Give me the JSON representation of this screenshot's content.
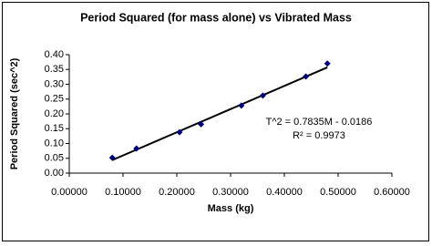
{
  "chart_data": {
    "type": "scatter",
    "title": "Period Squared (for mass alone) vs Vibrated Mass",
    "x_label": "Mass (kg)",
    "y_label": "Period Squared (sec^2)",
    "series": [
      {
        "name": "Period squared",
        "color": "#000080",
        "x": [
          0.08,
          0.125,
          0.205,
          0.245,
          0.32,
          0.36,
          0.44,
          0.48
        ],
        "values": [
          0.052,
          0.083,
          0.138,
          0.165,
          0.228,
          0.262,
          0.326,
          0.37
        ]
      }
    ],
    "trendline": {
      "color": "#000000",
      "x": [
        0.08,
        0.48
      ],
      "values": [
        0.044,
        0.357
      ]
    },
    "annotations": [
      "T^2 = 0.7835M - 0.0186",
      "R² = 0.9973"
    ],
    "xlim": [
      0,
      0.6
    ],
    "ylim": [
      0,
      0.4
    ],
    "xticks": [
      {
        "value": 0,
        "label": "0.00000"
      },
      {
        "value": 0.1,
        "label": "0.10000"
      },
      {
        "value": 0.2,
        "label": "0.20000"
      },
      {
        "value": 0.3,
        "label": "0.30000"
      },
      {
        "value": 0.4,
        "label": "0.40000"
      },
      {
        "value": 0.5,
        "label": "0.50000"
      },
      {
        "value": 0.6,
        "label": "0.60000"
      }
    ],
    "yticks": [
      {
        "value": 0,
        "label": "0.00"
      },
      {
        "value": 0.05,
        "label": "0.05"
      },
      {
        "value": 0.1,
        "label": "0.10"
      },
      {
        "value": 0.15,
        "label": "0.15"
      },
      {
        "value": 0.2,
        "label": "0.20"
      },
      {
        "value": 0.25,
        "label": "0.25"
      },
      {
        "value": 0.3,
        "label": "0.30"
      },
      {
        "value": 0.35,
        "label": "0.35"
      },
      {
        "value": 0.4,
        "label": "0.40"
      }
    ],
    "grid": false
  }
}
